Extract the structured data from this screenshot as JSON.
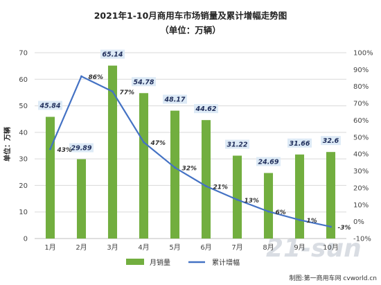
{
  "title": "2021年1-10月商用车市场销量及累计增幅走势图",
  "subtitle": "（单位：万辆）",
  "footer": "制图:第一商用车网 cvworld.cn",
  "watermark": "21-sun",
  "colors": {
    "bar": "#72ae3f",
    "line": "#4472c4",
    "grid": "#d9d9d9",
    "bar_label_bg": "#ddeaf6"
  },
  "chart_data": {
    "type": "bar+line",
    "categories": [
      "1月",
      "2月",
      "3月",
      "4月",
      "5月",
      "6月",
      "7月",
      "8月",
      "9月",
      "10月"
    ],
    "series": [
      {
        "name": "月销量",
        "type": "bar",
        "axis": "left",
        "values": [
          45.84,
          29.89,
          65.14,
          54.78,
          48.17,
          44.62,
          31.22,
          24.69,
          31.66,
          32.6
        ],
        "labels": [
          "45.84",
          "29.89",
          "65.14",
          "54.78",
          "48.17",
          "44.62",
          "31.22",
          "24.69",
          "31.66",
          "32.6"
        ]
      },
      {
        "name": "累计增幅",
        "type": "line",
        "axis": "right",
        "values": [
          43,
          86,
          77,
          47,
          32,
          21,
          13,
          6,
          1,
          -3
        ],
        "labels": [
          "43%",
          "86%",
          "77%",
          "47%",
          "32%",
          "21%",
          "13%",
          "6%",
          "1%",
          "-3%"
        ]
      }
    ],
    "ylabel": "单位：万辆",
    "ylim_left": [
      0,
      70
    ],
    "yticks_left": [
      0,
      10,
      20,
      30,
      40,
      50,
      60,
      70
    ],
    "ylim_right": [
      -10,
      100
    ],
    "yticks_right": [
      "-10%",
      "0%",
      "10%",
      "20%",
      "30%",
      "40%",
      "50%",
      "60%",
      "70%",
      "80%",
      "90%",
      "100%"
    ],
    "grid": "horizontal",
    "legend_position": "bottom"
  }
}
